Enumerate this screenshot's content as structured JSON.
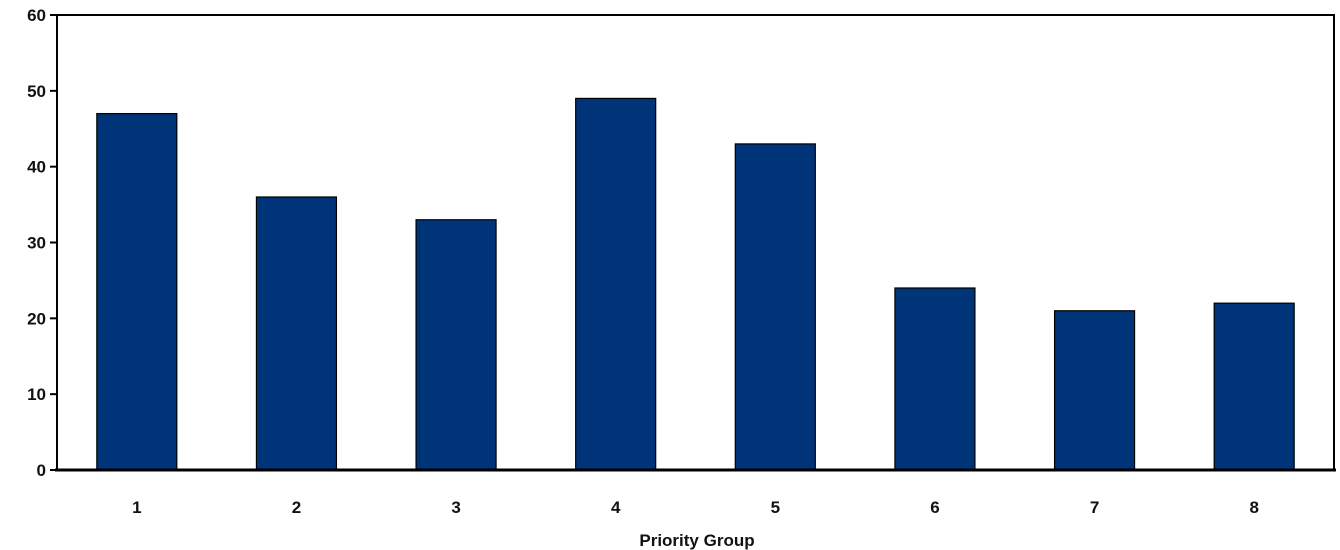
{
  "chart_data": {
    "type": "bar",
    "title": "",
    "xlabel": "Priority Group",
    "ylabel": "",
    "categories": [
      "1",
      "2",
      "3",
      "4",
      "5",
      "6",
      "7",
      "8"
    ],
    "values": [
      47,
      36,
      33,
      49,
      43,
      24,
      21,
      22
    ],
    "ylim": [
      0,
      60
    ],
    "yticks": [
      "0",
      "10",
      "20",
      "30",
      "40",
      "50",
      "60"
    ],
    "grid": false,
    "legend": "none",
    "colors": {
      "bar_fill": "#003478",
      "bar_stroke": "#000000",
      "axis": "#000000"
    }
  }
}
